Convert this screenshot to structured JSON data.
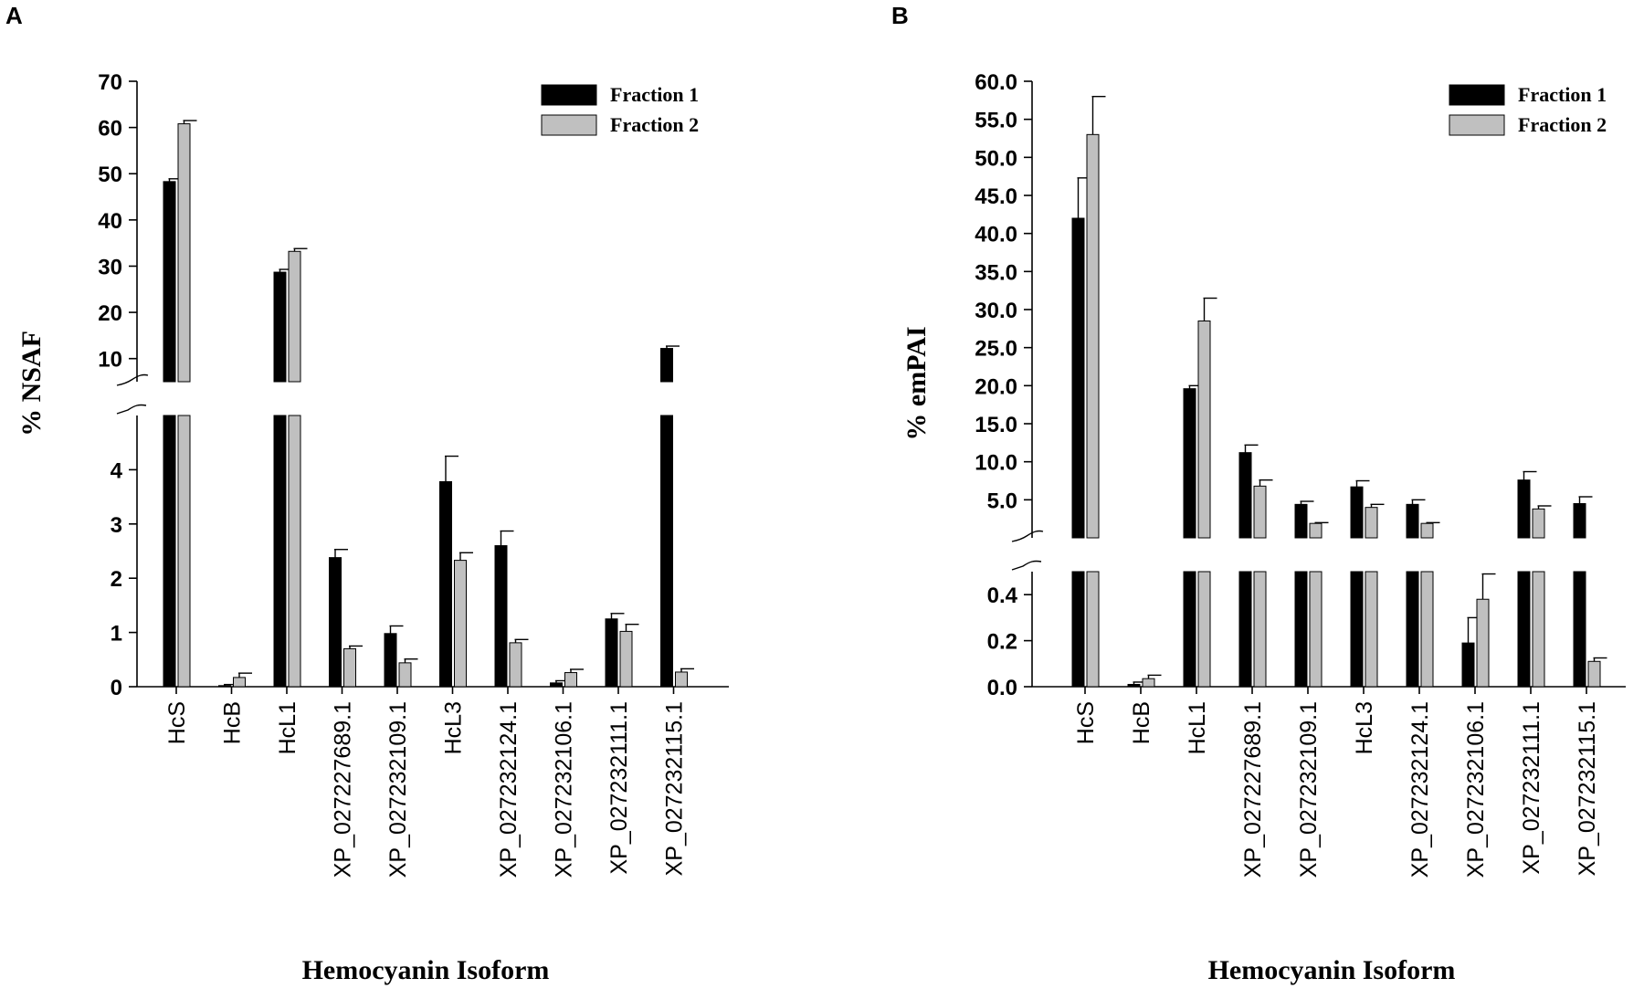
{
  "chart_data": [
    {
      "panel_label": "A",
      "type": "bar",
      "ylabel": "% NSAF",
      "xlabel": "Hemocyanin Isoform",
      "categories": [
        "HcS",
        "HcB",
        "HcL1",
        "XP_027227689.1",
        "XP_027232109.1",
        "HcL3",
        "XP_027232124.1",
        "XP_027232106.1",
        "XP_027232111.1",
        "XP_027232115.1"
      ],
      "series": [
        {
          "name": "Fraction 1",
          "color": "#000000",
          "values": [
            48.3,
            0.02,
            28.7,
            2.38,
            0.98,
            3.78,
            2.6,
            0.07,
            1.25,
            12.2
          ],
          "errors": [
            0.6,
            0.02,
            0.6,
            0.15,
            0.14,
            0.47,
            0.27,
            0.04,
            0.1,
            0.5
          ]
        },
        {
          "name": "Fraction 2",
          "color": "#c0c0c0",
          "values": [
            60.8,
            0.17,
            33.2,
            0.7,
            0.44,
            2.33,
            0.81,
            0.26,
            1.02,
            0.27
          ],
          "errors": [
            0.7,
            0.08,
            0.6,
            0.05,
            0.07,
            0.14,
            0.06,
            0.06,
            0.13,
            0.06
          ]
        }
      ],
      "axis_break": {
        "lower_ylim": [
          0,
          5
        ],
        "upper_ylim": [
          5,
          70
        ]
      },
      "lower_ticks": [
        "0",
        "1",
        "2",
        "3",
        "4"
      ],
      "upper_ticks": [
        "10",
        "20",
        "30",
        "40",
        "50",
        "60",
        "70"
      ],
      "legend": [
        "Fraction 1",
        "Fraction 2"
      ],
      "legend_position": "top-right"
    },
    {
      "panel_label": "B",
      "type": "bar",
      "ylabel": "% emPAI",
      "xlabel": "Hemocyanin Isoform",
      "categories": [
        "HcS",
        "HcB",
        "HcL1",
        "XP_027227689.1",
        "XP_027232109.1",
        "HcL3",
        "XP_027232124.1",
        "XP_027232106.1",
        "XP_027232111.1",
        "XP_027232115.1"
      ],
      "series": [
        {
          "name": "Fraction 1",
          "color": "#000000",
          "values": [
            42.0,
            0.01,
            19.6,
            11.2,
            4.4,
            6.7,
            4.4,
            0.19,
            7.6,
            4.5
          ],
          "errors": [
            5.3,
            0.01,
            0.4,
            1.0,
            0.4,
            0.8,
            0.6,
            0.11,
            1.1,
            0.9
          ]
        },
        {
          "name": "Fraction 2",
          "color": "#c0c0c0",
          "values": [
            53.0,
            0.035,
            28.5,
            6.8,
            1.9,
            4.0,
            1.9,
            0.38,
            3.8,
            0.11
          ],
          "errors": [
            5.0,
            0.015,
            3.0,
            0.8,
            0.1,
            0.4,
            0.1,
            0.11,
            0.4,
            0.015
          ]
        }
      ],
      "axis_break": {
        "lower_ylim": [
          0,
          0.5
        ],
        "upper_ylim": [
          0,
          60
        ]
      },
      "lower_ticks": [
        "0.0",
        "0.2",
        "0.4"
      ],
      "upper_ticks": [
        "5.0",
        "10.0",
        "15.0",
        "20.0",
        "25.0",
        "30.0",
        "35.0",
        "40.0",
        "45.0",
        "50.0",
        "55.0",
        "60.0"
      ],
      "legend": [
        "Fraction 1",
        "Fraction 2"
      ],
      "legend_position": "top-right"
    }
  ]
}
